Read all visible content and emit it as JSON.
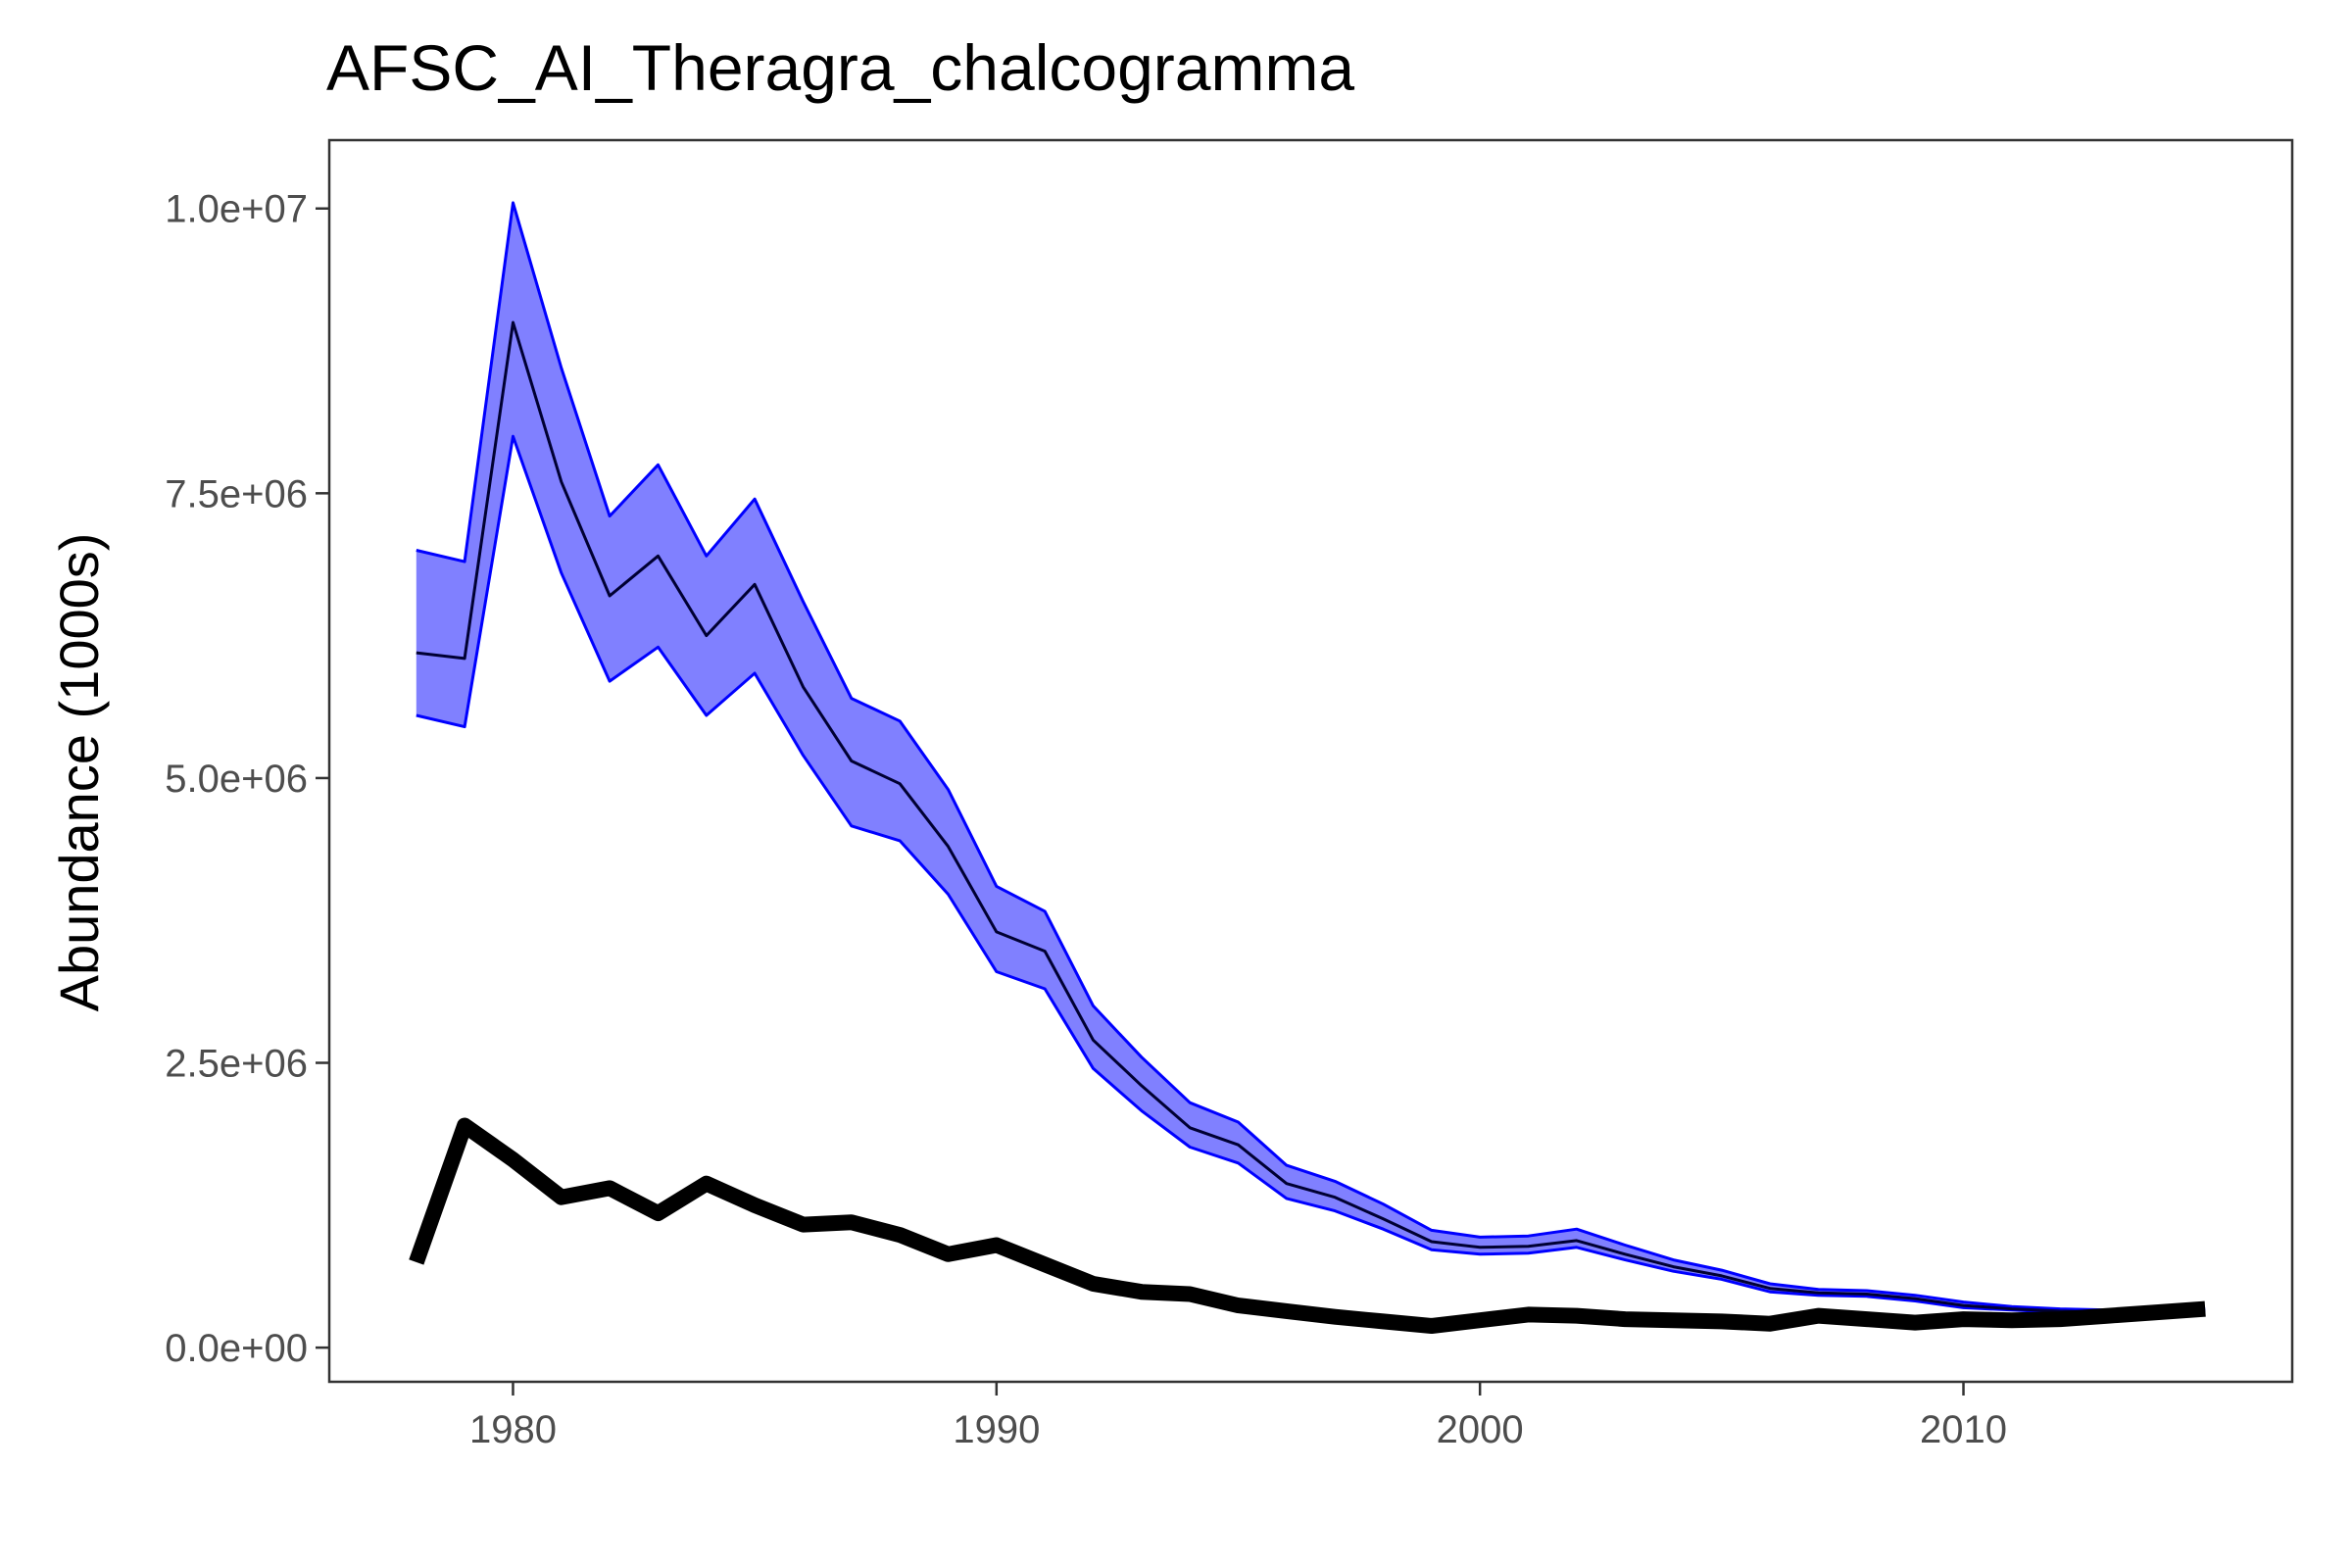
{
  "chart_data": {
    "type": "line",
    "title": "AFSC_AI_Theragra_chalcogramma",
    "xlabel": "",
    "ylabel": "Abundance (1000s)",
    "xlim": [
      1976.2,
      2016.8
    ],
    "ylim": [
      -300000,
      10600000
    ],
    "x_ticks": [
      1980,
      1990,
      2000,
      2010
    ],
    "x_tick_labels": [
      "1980",
      "1990",
      "2000",
      "2010"
    ],
    "y_ticks": [
      0,
      2500000,
      5000000,
      7500000,
      10000000
    ],
    "y_tick_labels": [
      "0.0e+00",
      "2.5e+06",
      "5.0e+06",
      "7.5e+06",
      "1.0e+07"
    ],
    "grid": false,
    "legend": "none",
    "colors": {
      "band_fill": "#8080ff",
      "band_edge": "#0000ff",
      "estimate_line": "#000033",
      "observed_line": "#000000",
      "axis": "#333333",
      "tick_label": "#4d4d4d"
    },
    "x": [
      1978,
      1979,
      1980,
      1981,
      1982,
      1983,
      1984,
      1985,
      1986,
      1987,
      1988,
      1989,
      1990,
      1991,
      1992,
      1993,
      1994,
      1995,
      1996,
      1997,
      1998,
      1999,
      2000,
      2001,
      2002,
      2003,
      2004,
      2005,
      2006,
      2007,
      2008,
      2009,
      2010,
      2011,
      2012,
      2013,
      2014,
      2015
    ],
    "series": [
      {
        "role": "estimate-upper",
        "values": [
          7000000,
          6900000,
          10050000,
          8600000,
          7300000,
          7750000,
          6950000,
          7450000,
          6550000,
          5700000,
          5500000,
          4900000,
          4050000,
          3830000,
          3000000,
          2550000,
          2150000,
          1980000,
          1600000,
          1460000,
          1260000,
          1030000,
          970000,
          980000,
          1040000,
          900000,
          770000,
          680000,
          560000,
          510000,
          500000,
          460000,
          400000,
          360000,
          340000,
          330000,
          330000,
          340000
        ]
      },
      {
        "role": "estimate",
        "values": [
          6100000,
          6050000,
          9000000,
          7600000,
          6600000,
          6950000,
          6250000,
          6700000,
          5800000,
          5150000,
          4950000,
          4400000,
          3650000,
          3480000,
          2700000,
          2300000,
          1930000,
          1780000,
          1440000,
          1320000,
          1130000,
          930000,
          880000,
          890000,
          940000,
          820000,
          710000,
          630000,
          520000,
          480000,
          470000,
          430000,
          370000,
          340000,
          320000,
          310000,
          310000,
          320000
        ]
      },
      {
        "role": "estimate-lower",
        "values": [
          5550000,
          5450000,
          8000000,
          6800000,
          5850000,
          6150000,
          5550000,
          5920000,
          5200000,
          4580000,
          4450000,
          3980000,
          3300000,
          3150000,
          2450000,
          2080000,
          1760000,
          1620000,
          1310000,
          1200000,
          1040000,
          860000,
          820000,
          830000,
          880000,
          770000,
          670000,
          600000,
          490000,
          460000,
          450000,
          410000,
          350000,
          330000,
          310000,
          300000,
          300000,
          310000
        ]
      },
      {
        "role": "observed",
        "values": [
          750000,
          1950000,
          1650000,
          1320000,
          1400000,
          1180000,
          1440000,
          1250000,
          1080000,
          1100000,
          990000,
          820000,
          900000,
          730000,
          560000,
          490000,
          470000,
          370000,
          320000,
          270000,
          230000,
          190000,
          240000,
          290000,
          280000,
          250000,
          240000,
          230000,
          210000,
          280000,
          250000,
          220000,
          250000,
          240000,
          250000,
          280000,
          310000,
          340000
        ]
      }
    ]
  }
}
